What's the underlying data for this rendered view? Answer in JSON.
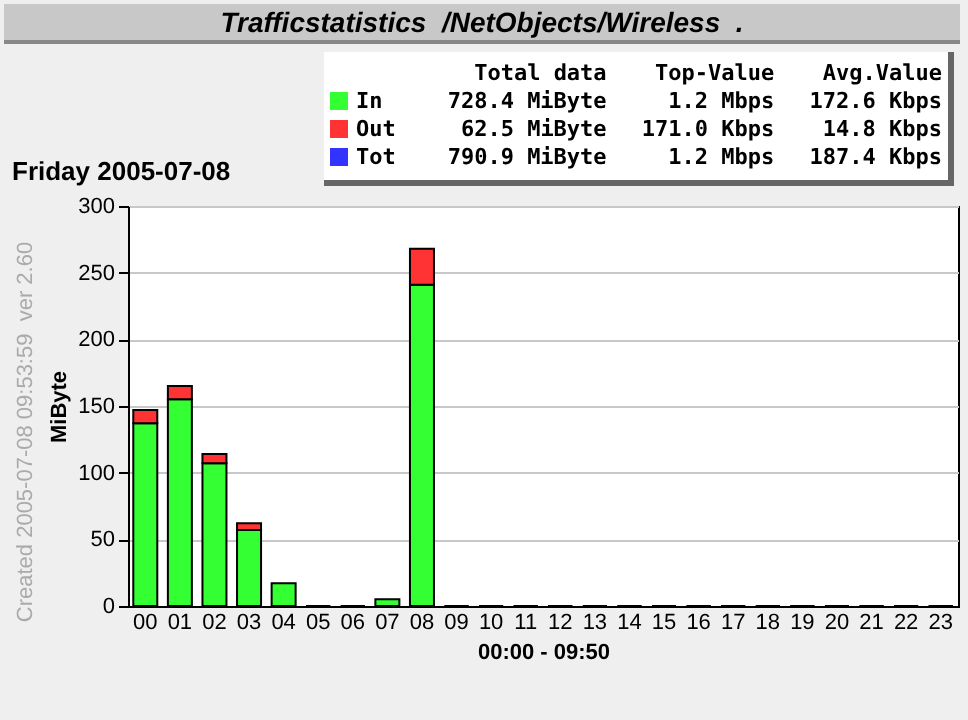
{
  "chart_data": {
    "type": "bar",
    "title": "Trafficstatistics  /NetObjects/Wireless  .",
    "subtitle": "Friday 2005-07-08",
    "xlabel": "00:00 - 09:50",
    "ylabel": "MiByte",
    "categories": [
      "00",
      "01",
      "02",
      "03",
      "04",
      "05",
      "06",
      "07",
      "08",
      "09",
      "10",
      "11",
      "12",
      "13",
      "14",
      "15",
      "16",
      "17",
      "18",
      "19",
      "20",
      "21",
      "22",
      "23"
    ],
    "stacked": true,
    "series": [
      {
        "name": "In",
        "color": "#33ff33",
        "values": [
          137,
          155,
          107,
          57,
          17,
          0,
          0,
          5,
          241,
          0,
          0,
          0,
          0,
          0,
          0,
          0,
          0,
          0,
          0,
          0,
          0,
          0,
          0,
          0
        ]
      },
      {
        "name": "Out",
        "color": "#ff3333",
        "values": [
          10,
          10,
          7,
          5,
          null,
          0,
          0,
          null,
          27,
          0,
          0,
          0,
          0,
          0,
          0,
          0,
          0,
          0,
          0,
          0,
          0,
          0,
          0,
          0
        ]
      },
      {
        "name": "Tot",
        "color": "#3333ff",
        "values": [
          null,
          null,
          null,
          null,
          null,
          null,
          null,
          null,
          null,
          null,
          null,
          null,
          null,
          null,
          null,
          null,
          null,
          null,
          null,
          null,
          null,
          null,
          null,
          null
        ]
      }
    ],
    "ylim": [
      0,
      300
    ],
    "yticks": [
      0,
      50,
      100,
      150,
      200,
      250,
      300
    ],
    "grid": "y",
    "legend": "top",
    "annotations": [
      "Total data",
      "Top-Value",
      "Avg.Value",
      "728.4 MiByte",
      "1.2 Mbps",
      "172.6 Kbps",
      "62.5 MiByte",
      "171.0 Kbps",
      "14.8 Kbps",
      "790.9 MiByte",
      "1.2 Mbps",
      "187.4 Kbps",
      "Created 2005-07-08 09:53:59  ver 2.60"
    ]
  }
}
